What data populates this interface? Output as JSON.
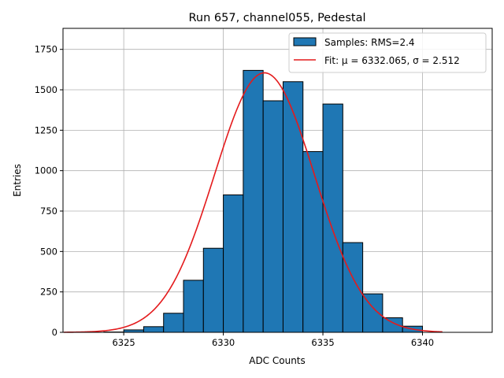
{
  "chart_data": {
    "type": "bar",
    "title": "Run 657, channel055, Pedestal",
    "xlabel": "ADC Counts",
    "ylabel": "Entries",
    "xlim": [
      6321.95,
      6343.5
    ],
    "ylim": [
      0,
      1880
    ],
    "xticks": [
      6325,
      6330,
      6335,
      6340
    ],
    "yticks": [
      0,
      250,
      500,
      750,
      1000,
      1250,
      1500,
      1750
    ],
    "grid": true,
    "legend_position": "top-right",
    "bins": {
      "edges": [
        6324,
        6325,
        6326,
        6327,
        6328,
        6329,
        6330,
        6331,
        6332,
        6333,
        6334,
        6335,
        6336,
        6337,
        6338,
        6339,
        6340
      ],
      "counts": [
        2,
        15,
        35,
        118,
        322,
        520,
        850,
        1620,
        1432,
        1550,
        1118,
        1412,
        555,
        238,
        90,
        38,
        8
      ]
    },
    "series": [
      {
        "name": "Samples: RMS=2.4",
        "kind": "histogram",
        "color": "#1f77b4",
        "edgecolor": "#000000"
      },
      {
        "name": "Fit: μ = 6332.065, σ = 2.512",
        "kind": "line",
        "color": "#e41a1c",
        "mu": 6332.065,
        "sigma": 2.512,
        "amplitude": 1605,
        "x_range": [
          6322,
          6341
        ]
      }
    ]
  }
}
